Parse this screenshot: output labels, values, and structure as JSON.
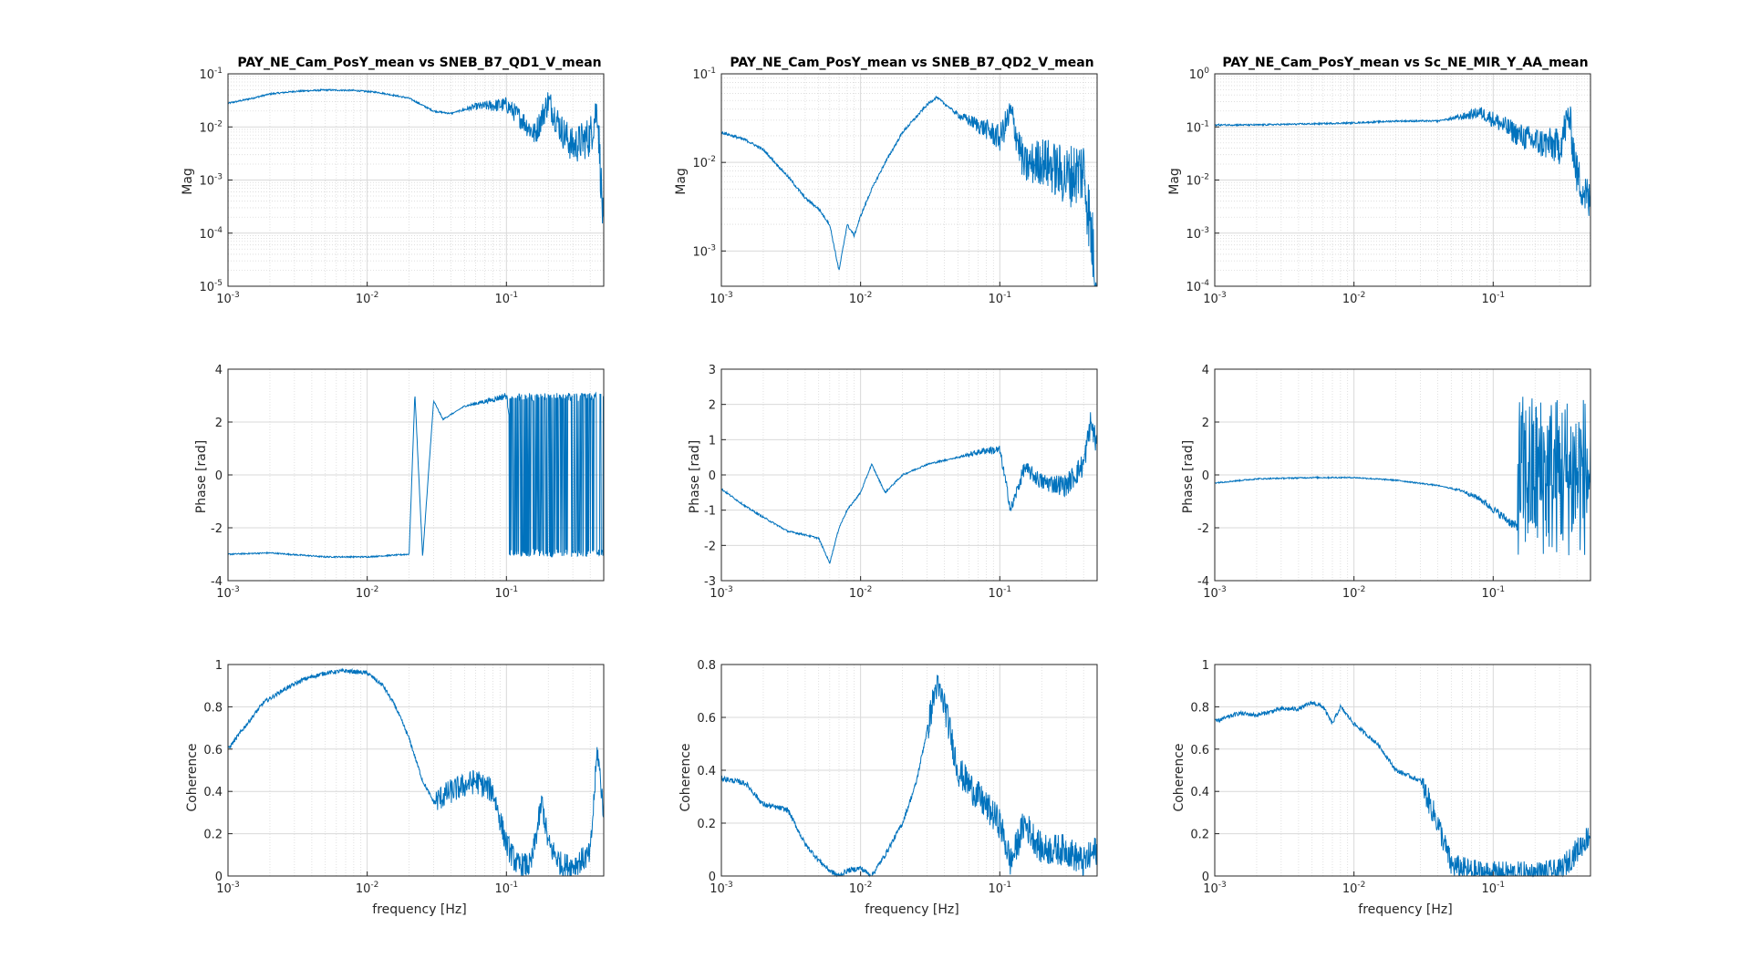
{
  "figure": {
    "line_color": "#0072BD",
    "grid_color": "#d9d9d9",
    "axis_color": "#262626"
  },
  "panels": [
    {
      "title": "PAY_NE_Cam_PosY_mean vs SNEB_B7_QD1_V_mean",
      "mag_ylabel": "Mag",
      "phase_ylabel": "Phase [rad]",
      "coh_ylabel": "Coherence",
      "xlabel": "frequency [Hz]"
    },
    {
      "title": "PAY_NE_Cam_PosY_mean vs SNEB_B7_QD2_V_mean",
      "mag_ylabel": "Mag",
      "phase_ylabel": "Phase [rad]",
      "coh_ylabel": "Coherence",
      "xlabel": "frequency [Hz]"
    },
    {
      "title": "PAY_NE_Cam_PosY_mean vs Sc_NE_MIR_Y_AA_mean",
      "mag_ylabel": "Mag",
      "phase_ylabel": "Phase [rad]",
      "coh_ylabel": "Coherence",
      "xlabel": "frequency [Hz]"
    }
  ],
  "chart_data": [
    {
      "type": "line",
      "title": "PAY_NE_Cam_PosY_mean vs SNEB_B7_QD1_V_mean",
      "ylabel": "Mag",
      "xlabel": "",
      "xscale": "log",
      "yscale": "log",
      "xlim": [
        0.001,
        0.5
      ],
      "ylim": [
        1e-05,
        0.1
      ],
      "xticks": [
        "10-3",
        "10-2",
        "10-1"
      ],
      "yticks": [
        "10-5",
        "10-4",
        "10-3",
        "10-2",
        "10-1"
      ],
      "grid": true,
      "series": [
        {
          "x": [
            0.001,
            0.0015,
            0.002,
            0.003,
            0.005,
            0.008,
            0.012,
            0.02,
            0.03,
            0.04,
            0.06,
            0.1,
            0.13,
            0.16,
            0.2,
            0.25,
            0.3,
            0.4,
            0.45,
            0.5
          ],
          "y": [
            0.028,
            0.035,
            0.042,
            0.047,
            0.05,
            0.049,
            0.045,
            0.035,
            0.02,
            0.018,
            0.025,
            0.028,
            0.015,
            0.008,
            0.035,
            0.01,
            0.005,
            0.008,
            0.03,
            0.0001
          ]
        }
      ]
    },
    {
      "type": "line",
      "title": "",
      "ylabel": "Phase [rad]",
      "xlabel": "",
      "xscale": "log",
      "xlim": [
        0.001,
        0.5
      ],
      "ylim": [
        -4,
        4
      ],
      "xticks": [
        "10-3",
        "10-2",
        "10-1"
      ],
      "yticks": [
        "-4",
        "-2",
        "0",
        "2",
        "4"
      ],
      "grid": true,
      "series": [
        {
          "x": [
            0.001,
            0.002,
            0.005,
            0.01,
            0.02,
            0.022,
            0.025,
            0.03,
            0.035,
            0.05,
            0.08,
            0.1,
            0.15,
            0.2,
            0.3,
            0.5
          ],
          "y": [
            -3.0,
            -2.95,
            -3.1,
            -3.1,
            -3.0,
            3.1,
            -3.1,
            2.8,
            2.1,
            2.6,
            2.85,
            3.0,
            -3.0,
            3.0,
            -3.0,
            3.0
          ]
        }
      ]
    },
    {
      "type": "line",
      "title": "",
      "ylabel": "Coherence",
      "xlabel": "frequency [Hz]",
      "xscale": "log",
      "xlim": [
        0.001,
        0.5
      ],
      "ylim": [
        0,
        1
      ],
      "xticks": [
        "10-3",
        "10-2",
        "10-1"
      ],
      "yticks": [
        "0",
        "0.2",
        "0.4",
        "0.6",
        "0.8",
        "1"
      ],
      "grid": true,
      "series": [
        {
          "x": [
            0.001,
            0.0013,
            0.0018,
            0.0025,
            0.0035,
            0.005,
            0.007,
            0.01,
            0.013,
            0.016,
            0.02,
            0.025,
            0.03,
            0.04,
            0.06,
            0.08,
            0.1,
            0.12,
            0.15,
            0.18,
            0.2,
            0.25,
            0.3,
            0.4,
            0.45,
            0.5
          ],
          "y": [
            0.6,
            0.7,
            0.82,
            0.88,
            0.93,
            0.96,
            0.97,
            0.96,
            0.9,
            0.8,
            0.65,
            0.45,
            0.35,
            0.4,
            0.45,
            0.4,
            0.15,
            0.05,
            0.05,
            0.35,
            0.15,
            0.05,
            0.05,
            0.1,
            0.6,
            0.3
          ]
        }
      ]
    },
    {
      "type": "line",
      "title": "PAY_NE_Cam_PosY_mean vs SNEB_B7_QD2_V_mean",
      "ylabel": "Mag",
      "xlabel": "",
      "xscale": "log",
      "yscale": "log",
      "xlim": [
        0.001,
        0.5
      ],
      "ylim": [
        0.0004,
        0.1
      ],
      "xticks": [
        "10-3",
        "10-2",
        "10-1"
      ],
      "yticks": [
        "10-3",
        "10-2",
        "10-1"
      ],
      "grid": true,
      "series": [
        {
          "x": [
            0.001,
            0.0015,
            0.002,
            0.003,
            0.004,
            0.005,
            0.006,
            0.007,
            0.008,
            0.009,
            0.01,
            0.012,
            0.015,
            0.02,
            0.03,
            0.035,
            0.05,
            0.08,
            0.1,
            0.12,
            0.15,
            0.2,
            0.3,
            0.4,
            0.5
          ],
          "y": [
            0.022,
            0.018,
            0.014,
            0.007,
            0.004,
            0.003,
            0.002,
            0.0006,
            0.002,
            0.0015,
            0.0025,
            0.005,
            0.01,
            0.022,
            0.045,
            0.055,
            0.035,
            0.025,
            0.02,
            0.04,
            0.01,
            0.012,
            0.008,
            0.01,
            0.0005
          ]
        }
      ]
    },
    {
      "type": "line",
      "title": "",
      "ylabel": "Phase [rad]",
      "xlabel": "",
      "xscale": "log",
      "xlim": [
        0.001,
        0.5
      ],
      "ylim": [
        -3,
        3
      ],
      "xticks": [
        "10-3",
        "10-2",
        "10-1"
      ],
      "yticks": [
        "-3",
        "-2",
        "-1",
        "0",
        "1",
        "2",
        "3"
      ],
      "grid": true,
      "series": [
        {
          "x": [
            0.001,
            0.0015,
            0.002,
            0.003,
            0.004,
            0.005,
            0.006,
            0.007,
            0.008,
            0.01,
            0.012,
            0.015,
            0.02,
            0.03,
            0.05,
            0.08,
            0.1,
            0.12,
            0.15,
            0.2,
            0.3,
            0.4,
            0.45,
            0.5
          ],
          "y": [
            -0.4,
            -0.9,
            -1.2,
            -1.6,
            -1.7,
            -1.8,
            -2.5,
            -1.5,
            -1.0,
            -0.5,
            0.3,
            -0.5,
            0.0,
            0.3,
            0.5,
            0.7,
            0.7,
            -1.0,
            0.2,
            -0.2,
            -0.3,
            0.3,
            1.5,
            0.8
          ]
        }
      ]
    },
    {
      "type": "line",
      "title": "",
      "ylabel": "Coherence",
      "xlabel": "frequency [Hz]",
      "xscale": "log",
      "xlim": [
        0.001,
        0.5
      ],
      "ylim": [
        0,
        0.8
      ],
      "xticks": [
        "10-3",
        "10-2",
        "10-1"
      ],
      "yticks": [
        "0",
        "0.2",
        "0.4",
        "0.6",
        "0.8"
      ],
      "grid": true,
      "series": [
        {
          "x": [
            0.001,
            0.0015,
            0.002,
            0.003,
            0.004,
            0.005,
            0.006,
            0.007,
            0.008,
            0.01,
            0.012,
            0.015,
            0.02,
            0.025,
            0.03,
            0.035,
            0.04,
            0.05,
            0.07,
            0.1,
            0.12,
            0.15,
            0.2,
            0.3,
            0.4,
            0.5
          ],
          "y": [
            0.37,
            0.35,
            0.27,
            0.25,
            0.12,
            0.06,
            0.02,
            0.0,
            0.02,
            0.03,
            0.0,
            0.08,
            0.2,
            0.35,
            0.55,
            0.72,
            0.65,
            0.4,
            0.3,
            0.2,
            0.05,
            0.2,
            0.1,
            0.1,
            0.05,
            0.1
          ]
        }
      ]
    },
    {
      "type": "line",
      "title": "PAY_NE_Cam_PosY_mean vs Sc_NE_MIR_Y_AA_mean",
      "ylabel": "Mag",
      "xlabel": "",
      "xscale": "log",
      "yscale": "log",
      "xlim": [
        0.001,
        0.5
      ],
      "ylim": [
        0.0001,
        1
      ],
      "xticks": [
        "10-3",
        "10-2",
        "10-1"
      ],
      "yticks": [
        "10-4",
        "10-3",
        "10-2",
        "10-1",
        "100"
      ],
      "grid": true,
      "series": [
        {
          "x": [
            0.001,
            0.002,
            0.005,
            0.01,
            0.02,
            0.04,
            0.06,
            0.08,
            0.1,
            0.15,
            0.2,
            0.3,
            0.35,
            0.4,
            0.5
          ],
          "y": [
            0.11,
            0.11,
            0.115,
            0.12,
            0.13,
            0.13,
            0.16,
            0.2,
            0.15,
            0.08,
            0.06,
            0.05,
            0.2,
            0.015,
            0.004
          ]
        }
      ]
    },
    {
      "type": "line",
      "title": "",
      "ylabel": "Phase [rad]",
      "xlabel": "",
      "xscale": "log",
      "xlim": [
        0.001,
        0.5
      ],
      "ylim": [
        -4,
        4
      ],
      "xticks": [
        "10-3",
        "10-2",
        "10-1"
      ],
      "yticks": [
        "-4",
        "-2",
        "0",
        "2",
        "4"
      ],
      "grid": true,
      "series": [
        {
          "x": [
            0.001,
            0.002,
            0.005,
            0.01,
            0.02,
            0.04,
            0.06,
            0.08,
            0.1,
            0.15,
            0.2,
            0.3,
            0.4,
            0.5
          ],
          "y": [
            -0.3,
            -0.15,
            -0.1,
            -0.1,
            -0.2,
            -0.4,
            -0.6,
            -0.9,
            -1.3,
            -2.0,
            -2.5,
            -3.0,
            -3.0,
            -3.0
          ]
        }
      ]
    },
    {
      "type": "line",
      "title": "",
      "ylabel": "Coherence",
      "xlabel": "frequency [Hz]",
      "xscale": "log",
      "xlim": [
        0.001,
        0.5
      ],
      "ylim": [
        0,
        1
      ],
      "xticks": [
        "10-3",
        "10-2",
        "10-1"
      ],
      "yticks": [
        "0",
        "0.2",
        "0.4",
        "0.6",
        "0.8",
        "1"
      ],
      "grid": true,
      "series": [
        {
          "x": [
            0.001,
            0.0015,
            0.002,
            0.003,
            0.004,
            0.005,
            0.006,
            0.007,
            0.008,
            0.01,
            0.015,
            0.02,
            0.03,
            0.04,
            0.05,
            0.07,
            0.1,
            0.15,
            0.2,
            0.3,
            0.5
          ],
          "y": [
            0.73,
            0.77,
            0.76,
            0.79,
            0.79,
            0.82,
            0.8,
            0.72,
            0.8,
            0.72,
            0.62,
            0.5,
            0.45,
            0.25,
            0.05,
            0.02,
            0.01,
            0.01,
            0.01,
            0.02,
            0.2
          ]
        }
      ]
    }
  ]
}
